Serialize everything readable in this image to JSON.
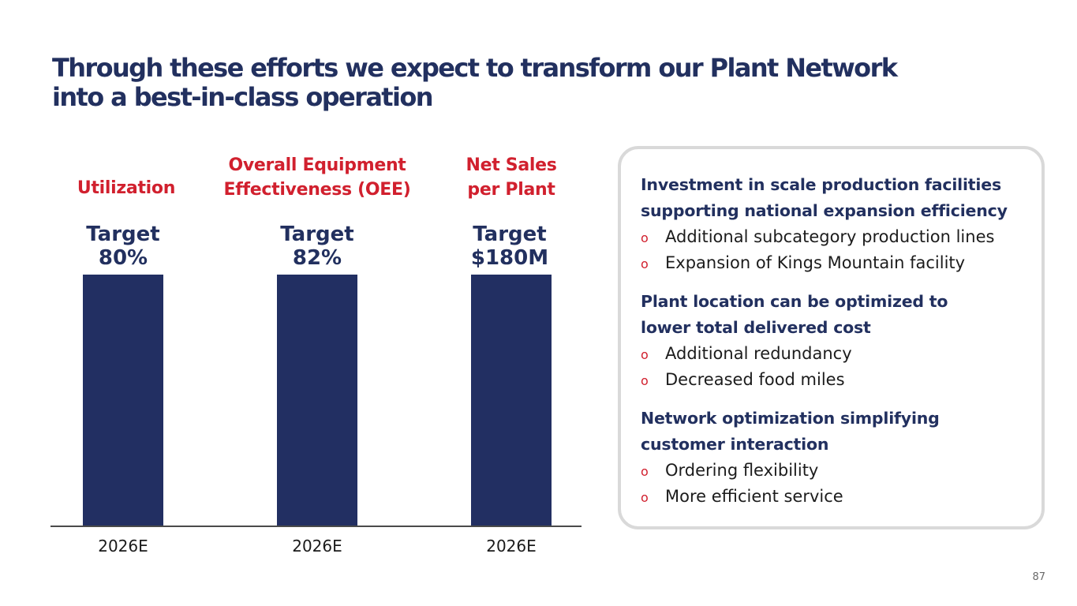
{
  "title": {
    "line1": "Through these efforts we expect to transform our Plant Network",
    "line2": "into a best-in-class operation"
  },
  "chart_data": {
    "type": "bar",
    "categories": [
      "2026E",
      "2026E",
      "2026E"
    ],
    "metrics": [
      {
        "label_lines": [
          "Utilization"
        ],
        "target_lines": [
          "Target",
          "80%"
        ]
      },
      {
        "label_lines": [
          "Overall Equipment",
          "Effectiveness (OEE)"
        ],
        "target_lines": [
          "Target",
          "82%"
        ]
      },
      {
        "label_lines": [
          "Net Sales",
          "per Plant"
        ],
        "target_lines": [
          "Target",
          "$180M"
        ]
      }
    ],
    "values": [
      1,
      1,
      1
    ],
    "ylim": [
      0,
      1
    ]
  },
  "panel": {
    "sections": [
      {
        "heading": [
          "Investment in scale production facilities",
          "supporting national expansion efficiency"
        ],
        "bullets": [
          "Additional subcategory production lines",
          "Expansion of Kings Mountain facility"
        ]
      },
      {
        "heading": [
          "Plant location can be optimized  to",
          "lower total delivered cost"
        ],
        "bullets": [
          "Additional redundancy",
          "Decreased food miles"
        ]
      },
      {
        "heading": [
          "Network optimization simplifying",
          "customer interaction"
        ],
        "bullets": [
          "Ordering flexibility",
          "More efficient service"
        ]
      }
    ],
    "bullet_marker": "o"
  },
  "page_number": "87",
  "colors": {
    "navy": "#22305f",
    "bar": "#222f62",
    "red": "#d1202e",
    "panel_border": "#d9d9d9"
  }
}
